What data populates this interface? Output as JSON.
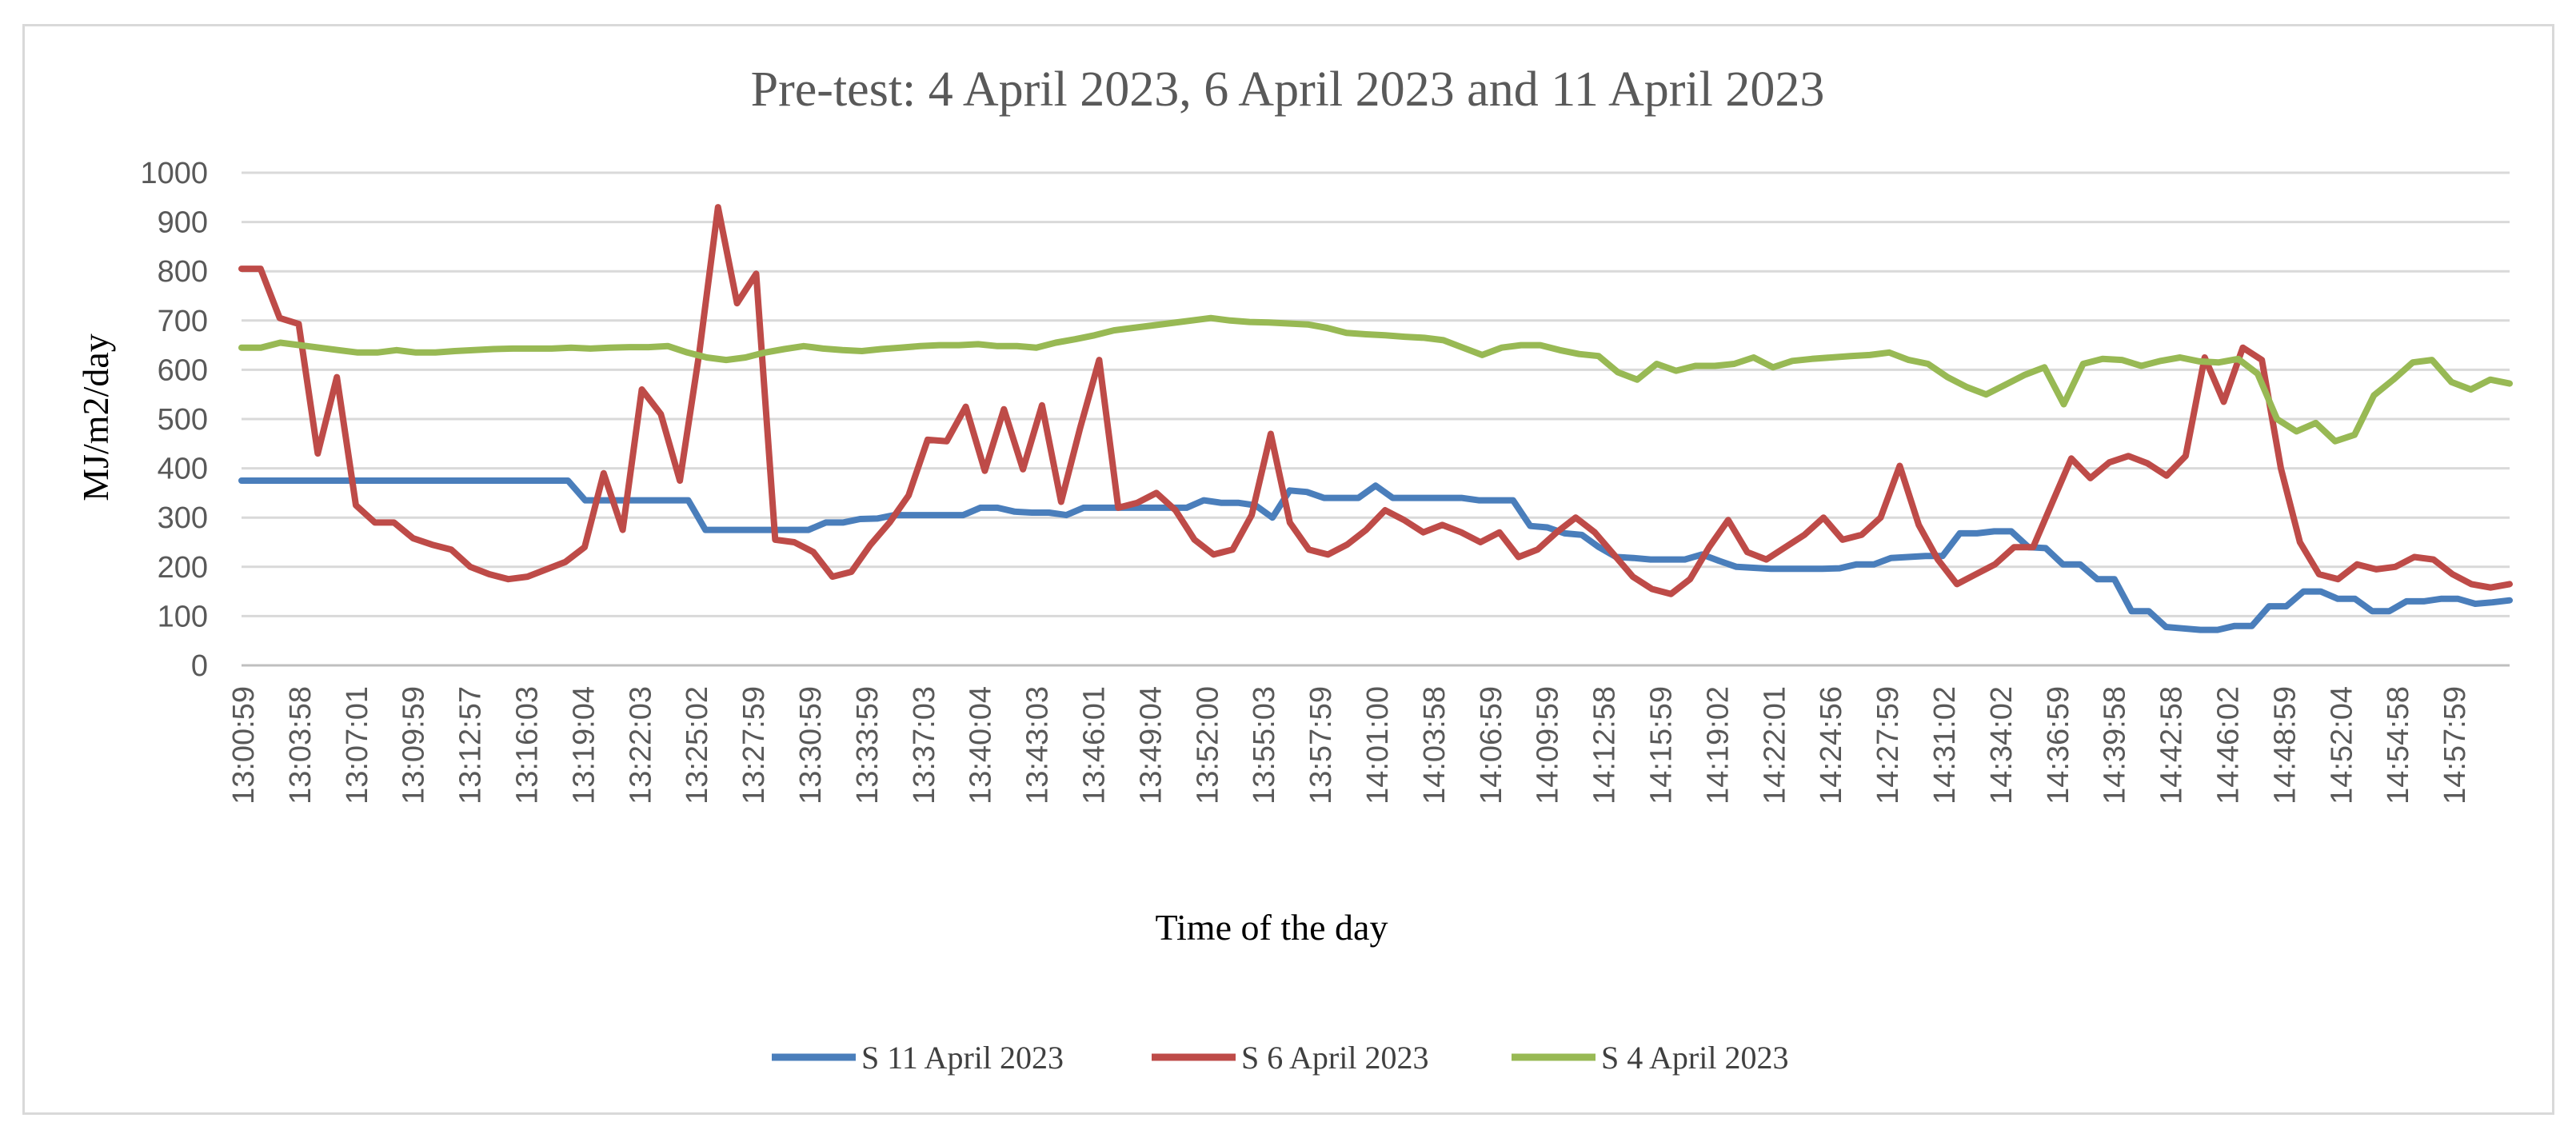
{
  "chart_data": {
    "type": "line",
    "title": "Pre-test: 4 April 2023, 6 April 2023 and 11 April 2023",
    "xlabel": "Time of the day",
    "ylabel": "MJ/m2/day",
    "ylim": [
      0,
      1000
    ],
    "yticks": [
      "0",
      "100",
      "200",
      "300",
      "400",
      "500",
      "600",
      "700",
      "800",
      "900",
      "1000"
    ],
    "grid": true,
    "legend_position": "bottom",
    "x_tick_labels": [
      "13:00:59",
      "13:03:58",
      "13:07:01",
      "13:09:59",
      "13:12:57",
      "13:16:03",
      "13:19:04",
      "13:22:03",
      "13:25:02",
      "13:27:59",
      "13:30:59",
      "13:33:59",
      "13:37:03",
      "13:40:04",
      "13:43:03",
      "13:46:01",
      "13:49:04",
      "13:52:00",
      "13:55:03",
      "13:57:59",
      "14:01:00",
      "14:03:58",
      "14:06:59",
      "14:09:59",
      "14:12:58",
      "14:15:59",
      "14:19:02",
      "14:22:01",
      "14:24:56",
      "14:27:59",
      "14:31:02",
      "14:34:02",
      "14:36:59",
      "14:39:58",
      "14:42:58",
      "14:46:02",
      "14:48:59",
      "14:52:04",
      "14:54:58",
      "14:57:59"
    ],
    "series": [
      {
        "name": "S 11 April 2023",
        "color": "#4a7ebb",
        "values": [
          375,
          375,
          375,
          375,
          375,
          375,
          375,
          375,
          375,
          375,
          375,
          375,
          375,
          375,
          375,
          375,
          375,
          375,
          375,
          375,
          335,
          335,
          335,
          335,
          335,
          335,
          335,
          275,
          275,
          275,
          275,
          275,
          275,
          275,
          290,
          290,
          297,
          298,
          305,
          305,
          305,
          305,
          305,
          320,
          320,
          312,
          310,
          310,
          305,
          320,
          320,
          320,
          320,
          320,
          320,
          320,
          335,
          330,
          330,
          325,
          300,
          355,
          352,
          340,
          340,
          340,
          365,
          340,
          340,
          340,
          340,
          340,
          335,
          335,
          335,
          283,
          280,
          268,
          265,
          240,
          220,
          218,
          215,
          215,
          215,
          225,
          212,
          200,
          198,
          196,
          196,
          196,
          196,
          197,
          205,
          205,
          218,
          220,
          222,
          222,
          268,
          268,
          272,
          272,
          240,
          238,
          205,
          205,
          175,
          175,
          110,
          110,
          78,
          75,
          72,
          72,
          80,
          80,
          120,
          120,
          150,
          150,
          135,
          135,
          110,
          110,
          130,
          130,
          135,
          135,
          125,
          128,
          132
        ]
      },
      {
        "name": "S 6 April 2023",
        "color": "#be4b48",
        "values": [
          805,
          805,
          705,
          693,
          430,
          585,
          325,
          290,
          290,
          258,
          245,
          235,
          200,
          185,
          175,
          180,
          195,
          210,
          240,
          390,
          275,
          560,
          510,
          375,
          630,
          930,
          735,
          795,
          255,
          250,
          230,
          180,
          190,
          245,
          290,
          345,
          458,
          455,
          525,
          395,
          520,
          398,
          528,
          332,
          482,
          620,
          320,
          330,
          350,
          315,
          255,
          225,
          235,
          305,
          470,
          290,
          235,
          225,
          245,
          275,
          315,
          295,
          270,
          285,
          270,
          250,
          270,
          220,
          235,
          270,
          300,
          270,
          225,
          180,
          155,
          145,
          175,
          240,
          295,
          230,
          215,
          240,
          265,
          300,
          255,
          265,
          300,
          405,
          285,
          215,
          165,
          185,
          205,
          240,
          240,
          330,
          420,
          380,
          412,
          425,
          410,
          385,
          425,
          625,
          535,
          645,
          620,
          400,
          250,
          185,
          175,
          205,
          195,
          200,
          220,
          215,
          185,
          165,
          158,
          165
        ]
      },
      {
        "name": "S 4 April 2023",
        "color": "#98b954",
        "values": [
          645,
          645,
          655,
          650,
          645,
          640,
          635,
          635,
          640,
          635,
          635,
          638,
          640,
          642,
          643,
          643,
          643,
          645,
          643,
          645,
          646,
          646,
          648,
          635,
          625,
          620,
          625,
          635,
          642,
          648,
          643,
          640,
          638,
          642,
          645,
          648,
          650,
          650,
          652,
          648,
          648,
          645,
          655,
          662,
          670,
          680,
          685,
          690,
          695,
          700,
          705,
          700,
          697,
          696,
          694,
          692,
          685,
          675,
          672,
          670,
          667,
          665,
          660,
          645,
          630,
          645,
          650,
          650,
          640,
          632,
          628,
          595,
          580,
          612,
          598,
          608,
          608,
          612,
          625,
          605,
          618,
          622,
          625,
          628,
          630,
          635,
          620,
          612,
          585,
          565,
          550,
          570,
          590,
          605,
          530,
          612,
          622,
          620,
          608,
          618,
          625,
          617,
          615,
          622,
          592,
          500,
          475,
          492,
          455,
          468,
          548,
          580,
          615,
          620,
          575,
          560,
          580,
          572
        ]
      }
    ]
  }
}
